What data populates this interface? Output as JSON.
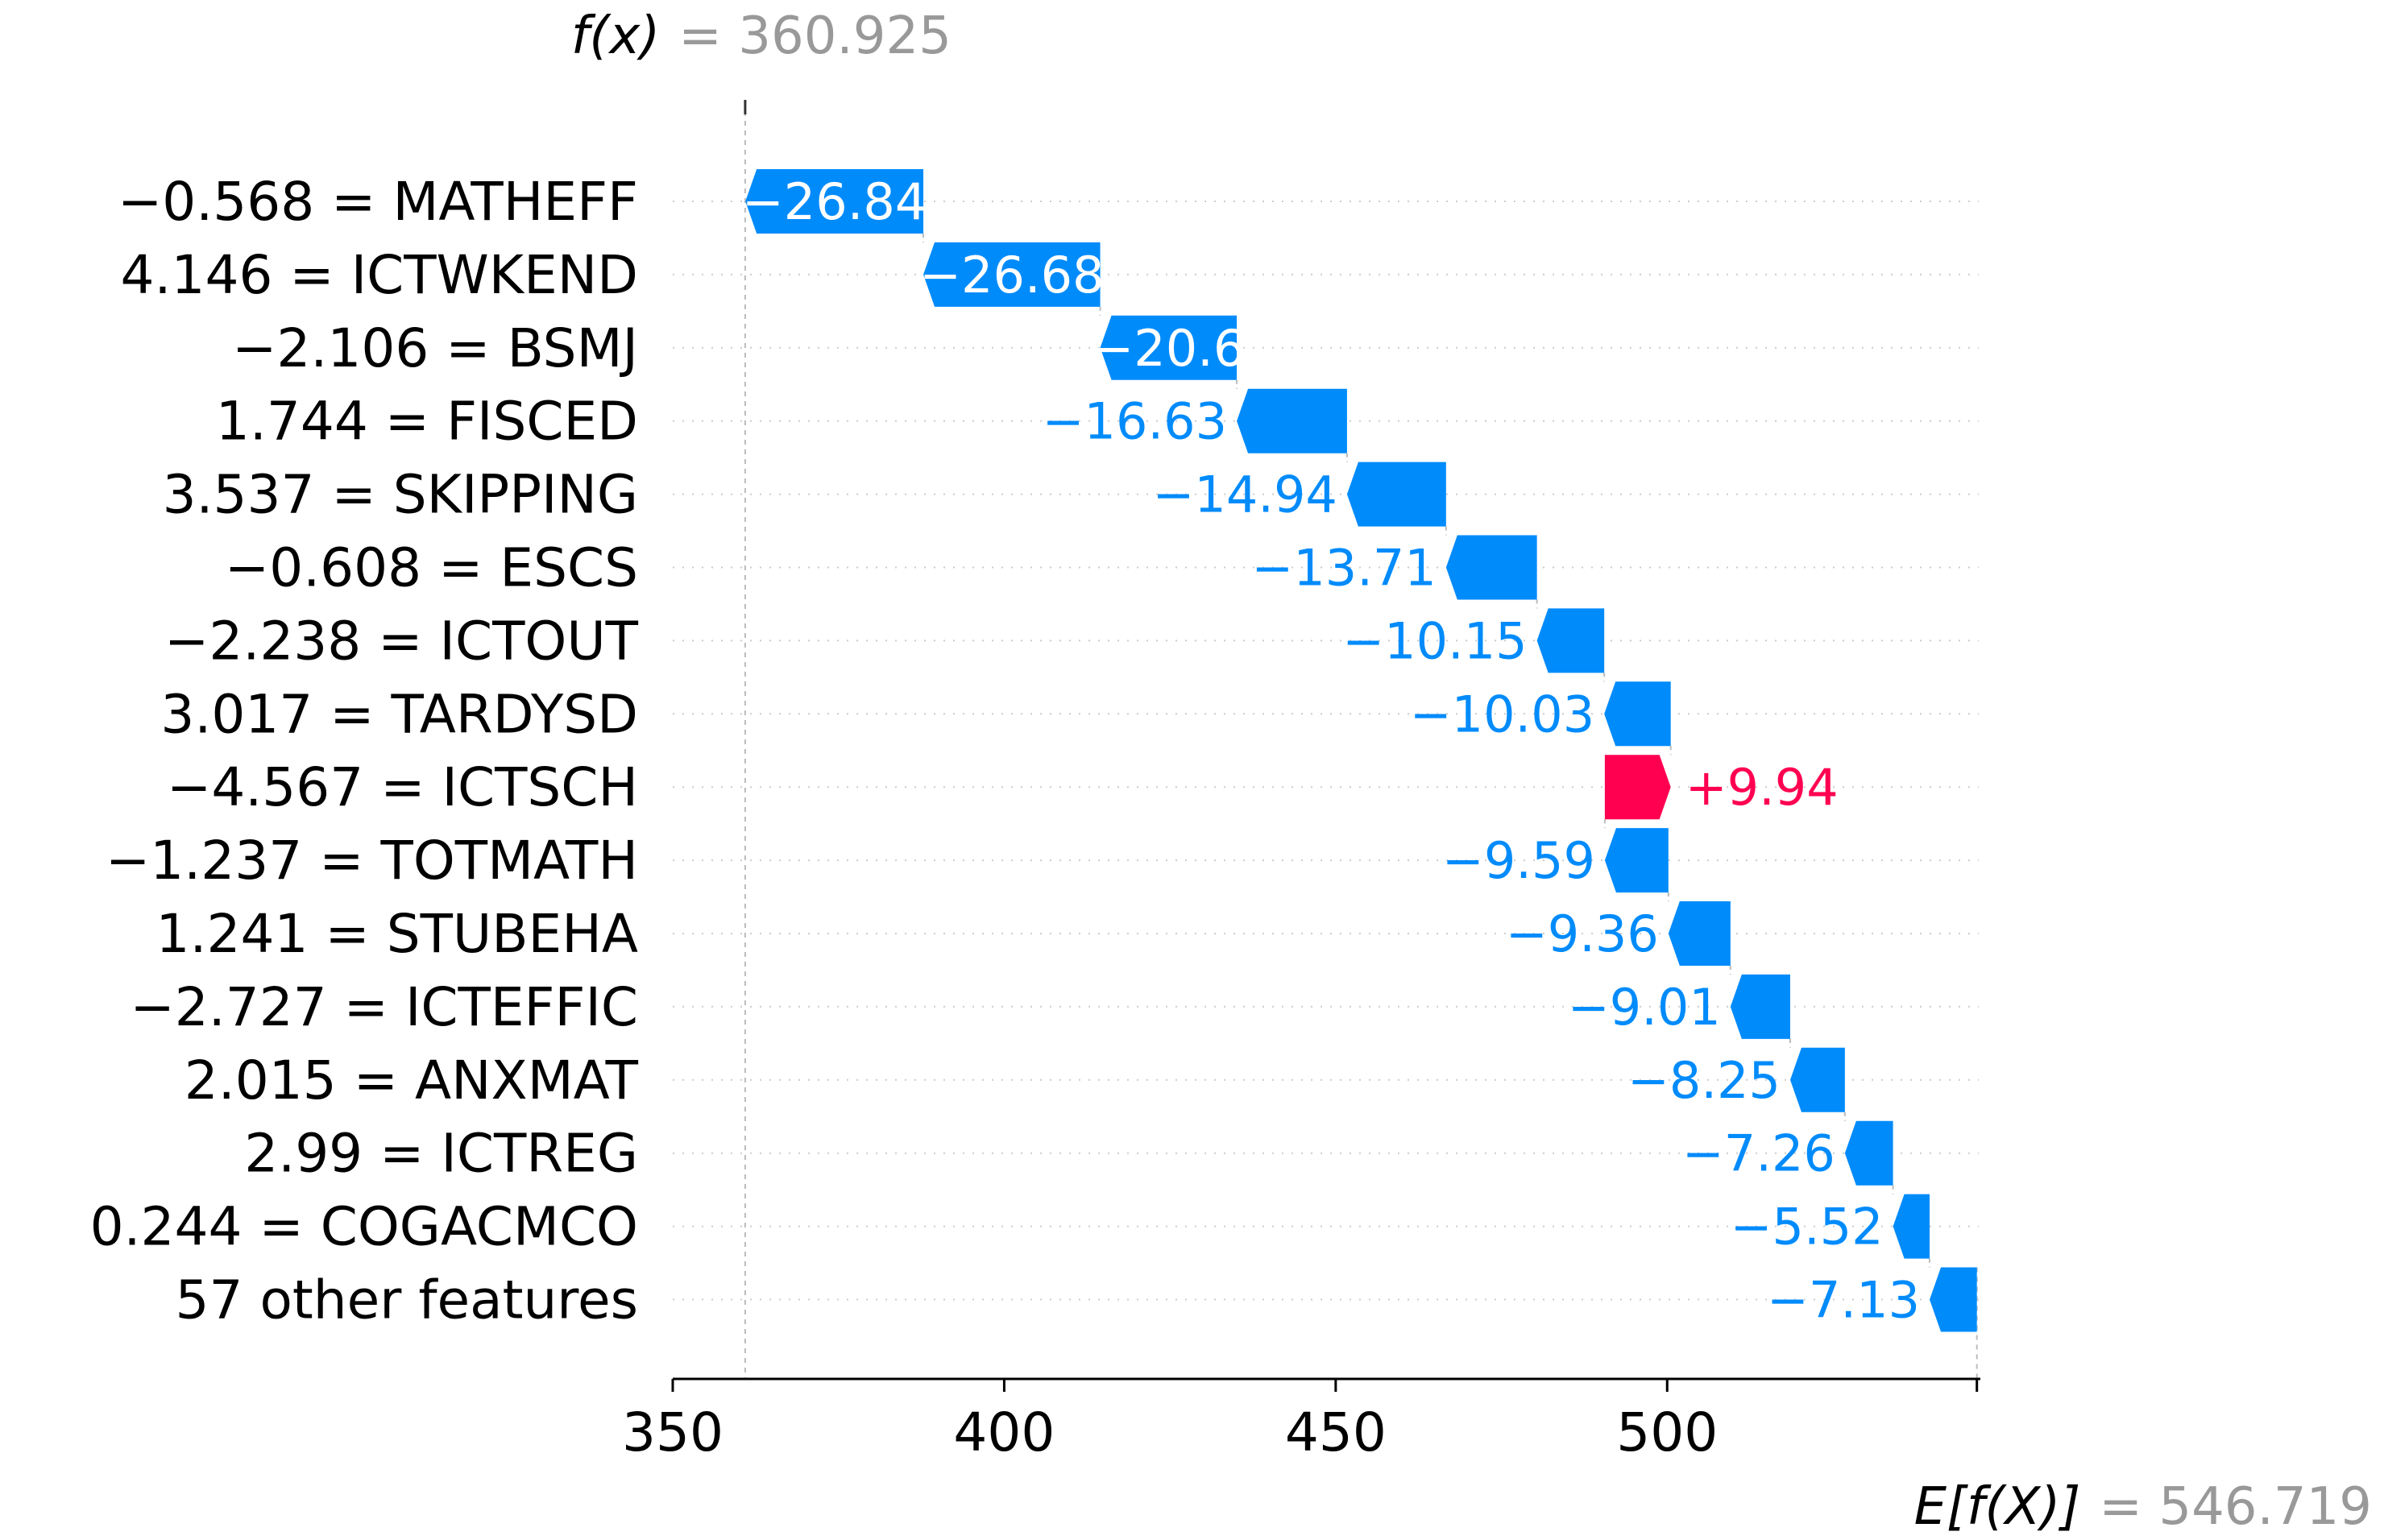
{
  "chart_data": {
    "type": "waterfall",
    "title": "",
    "xlabel": "",
    "ylabel": "",
    "xlim": [
      350,
      547
    ],
    "xticks": [
      "350",
      "400",
      "450",
      "500"
    ],
    "xtick_values": [
      350,
      400,
      450,
      500
    ],
    "base_value": 546.719,
    "output_value": 360.925,
    "fx_label": "f(x)",
    "fx_value_text": "= 360.925",
    "efx_label": "E[f(X)]",
    "efx_value_text": "= 546.719",
    "features": [
      {
        "label": "−0.568 = MATHEFF",
        "value": -26.84,
        "text": "−26.84"
      },
      {
        "label": "4.146 = ICTWKEND",
        "value": -26.68,
        "text": "−26.68"
      },
      {
        "label": "−2.106 = BSMJ",
        "value": -20.6,
        "text": "−20.6"
      },
      {
        "label": "1.744 = FISCED",
        "value": -16.63,
        "text": "−16.63"
      },
      {
        "label": "3.537 = SKIPPING",
        "value": -14.94,
        "text": "−14.94"
      },
      {
        "label": "−0.608 = ESCS",
        "value": -13.71,
        "text": "−13.71"
      },
      {
        "label": "−2.238 = ICTOUT",
        "value": -10.15,
        "text": "−10.15"
      },
      {
        "label": "3.017 = TARDYSD",
        "value": -10.03,
        "text": "−10.03"
      },
      {
        "label": "−4.567 = ICTSCH",
        "value": 9.94,
        "text": "+9.94"
      },
      {
        "label": "−1.237 = TOTMATH",
        "value": -9.59,
        "text": "−9.59"
      },
      {
        "label": "1.241 = STUBEHA",
        "value": -9.36,
        "text": "−9.36"
      },
      {
        "label": "−2.727 = ICTEFFIC",
        "value": -9.01,
        "text": "−9.01"
      },
      {
        "label": "2.015 = ANXMAT",
        "value": -8.25,
        "text": "−8.25"
      },
      {
        "label": "2.99 = ICTREG",
        "value": -7.26,
        "text": "−7.26"
      },
      {
        "label": "0.244 = COGACMCO",
        "value": -5.52,
        "text": "−5.52"
      },
      {
        "label": "57 other features",
        "value": -7.13,
        "text": "−7.13"
      }
    ],
    "colors": {
      "negative": "#008bfb",
      "positive": "#ff0051",
      "muted_text": "#999999"
    }
  }
}
